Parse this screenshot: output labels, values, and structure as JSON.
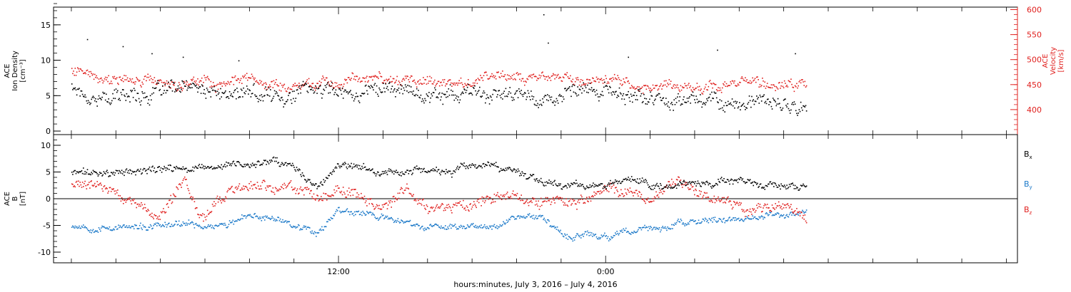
{
  "chart_data": [
    {
      "type": "scatter",
      "panel": "ion-density-velocity",
      "left_axis": {
        "label_lines": [
          "ACE",
          "Ion Density",
          "[cm⁻³]"
        ],
        "ticks": [
          0,
          5,
          10,
          15
        ],
        "ylim": [
          -0.5,
          17.5
        ],
        "color": "#000000"
      },
      "right_axis": {
        "label_lines": [
          "ACE",
          "Velocity",
          "[km/s]"
        ],
        "ticks": [
          400,
          450,
          500,
          550,
          600
        ],
        "ylim": [
          350,
          605
        ],
        "color": "#e0201e"
      },
      "series": [
        {
          "key": "density",
          "axis": "left",
          "color": "#000000",
          "x_hours": [
            0,
            1,
            2,
            3,
            4,
            5,
            6,
            7,
            8,
            9,
            10,
            11,
            12,
            13,
            14,
            15,
            16,
            17,
            18,
            19,
            20,
            21,
            22,
            23,
            24,
            25,
            26,
            27,
            28,
            29,
            30,
            31,
            32,
            33
          ],
          "values": [
            6.5,
            5.0,
            4.8,
            5.5,
            5.5,
            5.8,
            5.4,
            5.0,
            5.2,
            5.0,
            5.5,
            6.0,
            5.8,
            5.8,
            6.5,
            5.8,
            5.5,
            5.5,
            5.0,
            5.2,
            4.8,
            5.0,
            5.0,
            5.2,
            5.6,
            5.0,
            4.5,
            4.6,
            4.8,
            4.5,
            4.2,
            3.8,
            3.6,
            3.2
          ],
          "scatter": 1.4
        },
        {
          "key": "velocity",
          "axis": "right",
          "color": "#e0201e",
          "x_hours": [
            0,
            1,
            2,
            3,
            4,
            5,
            6,
            7,
            8,
            9,
            10,
            11,
            12,
            13,
            14,
            15,
            16,
            17,
            18,
            19,
            20,
            21,
            22,
            23,
            24,
            25,
            26,
            27,
            28,
            29,
            30,
            31,
            32,
            33
          ],
          "values": [
            485,
            475,
            468,
            465,
            462,
            458,
            455,
            455,
            458,
            455,
            452,
            455,
            458,
            460,
            460,
            458,
            455,
            458,
            462,
            468,
            472,
            468,
            462,
            458,
            455,
            452,
            450,
            450,
            452,
            450,
            448,
            450,
            455,
            448
          ],
          "scatter": 14
        }
      ],
      "annotations": [
        {
          "x_hours": 0.7,
          "value": 13.0
        },
        {
          "x_hours": 2.3,
          "value": 12.0
        },
        {
          "x_hours": 3.6,
          "value": 11.0
        },
        {
          "x_hours": 5.0,
          "value": 10.5
        },
        {
          "x_hours": 7.5,
          "value": 10.0
        },
        {
          "x_hours": 21.2,
          "value": 16.5
        },
        {
          "x_hours": 21.4,
          "value": 12.5
        },
        {
          "x_hours": 25.0,
          "value": 10.5
        },
        {
          "x_hours": 29.0,
          "value": 11.5
        },
        {
          "x_hours": 32.5,
          "value": 11.0
        }
      ]
    },
    {
      "type": "scatter",
      "panel": "magnetic-field",
      "left_axis": {
        "label_lines": [
          "ACE",
          "B",
          "[nT]"
        ],
        "ticks": [
          -10,
          -5,
          0,
          5,
          10
        ],
        "ylim": [
          -12,
          12
        ]
      },
      "zero_line": true,
      "legend": [
        {
          "label": "B",
          "subscript": "x",
          "color": "#000000"
        },
        {
          "label": "B",
          "subscript": "y",
          "color": "#1a78c8"
        },
        {
          "label": "B",
          "subscript": "z",
          "color": "#e0201e"
        }
      ],
      "series": [
        {
          "key": "bx",
          "color": "#000000",
          "x_hours": [
            0,
            1,
            2,
            3,
            4,
            5,
            6,
            7,
            8,
            9,
            10,
            11,
            12,
            13,
            14,
            15,
            16,
            17,
            18,
            19,
            20,
            21,
            22,
            23,
            24,
            25,
            26,
            27,
            28,
            29,
            30,
            31,
            32,
            33
          ],
          "values": [
            5.0,
            4.8,
            5.0,
            5.2,
            5.5,
            5.8,
            5.5,
            6.2,
            6.5,
            6.8,
            5.5,
            2.0,
            6.0,
            5.5,
            5.0,
            5.2,
            5.5,
            5.0,
            6.0,
            5.5,
            4.8,
            4.0,
            3.0,
            2.5,
            3.0,
            3.5,
            3.0,
            3.0,
            3.2,
            3.0,
            3.0,
            2.5,
            2.0,
            2.0
          ],
          "scatter": 0.9
        },
        {
          "key": "by",
          "color": "#1a78c8",
          "x_hours": [
            0,
            1,
            2,
            3,
            4,
            5,
            6,
            7,
            8,
            9,
            10,
            11,
            12,
            13,
            14,
            15,
            16,
            17,
            18,
            19,
            20,
            21,
            22,
            23,
            24,
            25,
            26,
            27,
            28,
            29,
            30,
            31,
            32,
            33
          ],
          "values": [
            -4.8,
            -5.0,
            -5.0,
            -5.5,
            -5.2,
            -5.0,
            -5.0,
            -4.5,
            -3.5,
            -3.5,
            -4.5,
            -6.0,
            -2.0,
            -2.5,
            -3.5,
            -4.5,
            -5.5,
            -5.2,
            -5.0,
            -4.5,
            -3.0,
            -3.0,
            -6.5,
            -6.8,
            -7.0,
            -6.5,
            -5.5,
            -5.0,
            -4.5,
            -4.0,
            -3.5,
            -3.5,
            -3.2,
            -2.0
          ],
          "scatter": 0.8
        },
        {
          "key": "bz",
          "color": "#e0201e",
          "x_hours": [
            0,
            1,
            2,
            3,
            4,
            5,
            6,
            7,
            8,
            9,
            10,
            11,
            12,
            13,
            14,
            15,
            16,
            17,
            18,
            19,
            20,
            21,
            22,
            23,
            24,
            25,
            26,
            27,
            28,
            29,
            30,
            31,
            32,
            33
          ],
          "values": [
            2.5,
            2.5,
            1.5,
            -2.0,
            -3.0,
            2.5,
            -2.5,
            1.0,
            2.0,
            2.0,
            2.0,
            0.5,
            2.0,
            0.5,
            -1.0,
            1.0,
            -1.0,
            -1.0,
            -0.5,
            2.0,
            1.0,
            -1.0,
            0.0,
            -0.5,
            1.5,
            1.5,
            0.0,
            2.0,
            2.0,
            0.5,
            -1.0,
            -2.0,
            -0.5,
            -4.0
          ],
          "scatter": 1.4
        }
      ]
    }
  ],
  "x_axis": {
    "ticks": [
      {
        "hours": 12,
        "label": "12:00"
      },
      {
        "hours": 24,
        "label": "0:00"
      }
    ],
    "minor_every_hours": 2,
    "range_hours": [
      -0.8,
      42.5
    ],
    "data_end_hours": 33.0
  },
  "xlabel": "hours:minutes, July  3, 2016 – July  4, 2016"
}
